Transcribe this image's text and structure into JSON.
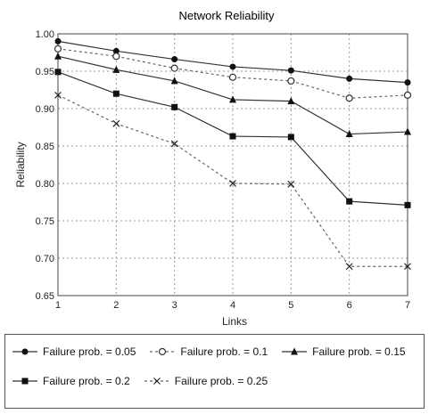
{
  "chart_data": {
    "type": "line",
    "title": "Network Reliability",
    "xlabel": "Links",
    "ylabel": "Reliability",
    "x": [
      1,
      2,
      3,
      4,
      5,
      6,
      7
    ],
    "xlim": [
      1,
      7
    ],
    "ylim": [
      0.65,
      1.0
    ],
    "yticks": [
      "1.00",
      "0.95",
      "0.90",
      "0.85",
      "0.80",
      "0.75",
      "0.70",
      "0.65"
    ],
    "xticks": [
      "1",
      "2",
      "3",
      "4",
      "5",
      "6",
      "7"
    ],
    "grid": true,
    "legend_position": "bottom",
    "series": [
      {
        "name": "Failure prob. = 0.05",
        "marker": "filled-circle",
        "line": "solid",
        "values": [
          0.99,
          0.977,
          0.966,
          0.956,
          0.951,
          0.94,
          0.935
        ]
      },
      {
        "name": "Failure prob. = 0.1",
        "marker": "open-circle",
        "line": "dashed",
        "values": [
          0.98,
          0.97,
          0.954,
          0.942,
          0.937,
          0.914,
          0.918
        ]
      },
      {
        "name": "Failure prob. = 0.15",
        "marker": "triangle",
        "line": "solid",
        "values": [
          0.97,
          0.952,
          0.937,
          0.912,
          0.91,
          0.866,
          0.869
        ]
      },
      {
        "name": "Failure prob. = 0.2",
        "marker": "filled-square",
        "line": "solid",
        "values": [
          0.949,
          0.92,
          0.902,
          0.863,
          0.862,
          0.776,
          0.771
        ]
      },
      {
        "name": "Failure prob. = 0.25",
        "marker": "x",
        "line": "dashed",
        "values": [
          0.918,
          0.88,
          0.853,
          0.8,
          0.799,
          0.689,
          0.689
        ]
      }
    ]
  }
}
